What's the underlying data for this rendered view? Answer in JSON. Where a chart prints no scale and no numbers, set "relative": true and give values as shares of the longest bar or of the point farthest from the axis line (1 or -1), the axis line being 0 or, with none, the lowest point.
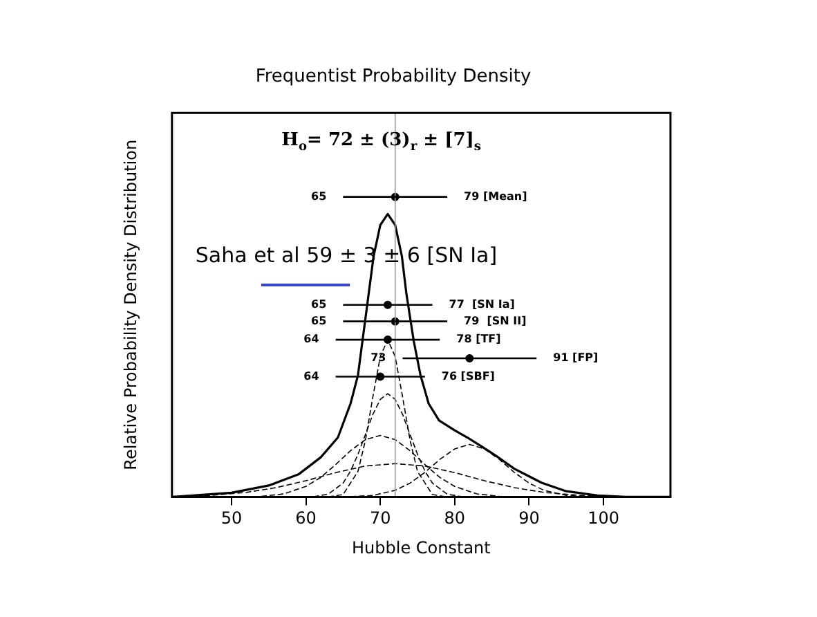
{
  "chart_data": {
    "type": "line",
    "title": "Frequentist Probability Density",
    "xlabel": "Hubble Constant",
    "ylabel": "Relative Probability Density Distribution",
    "relative": true,
    "xlim": [
      42,
      109
    ],
    "xticks": [
      50,
      60,
      70,
      80,
      90,
      100
    ],
    "grid": false,
    "legend": false,
    "ref_lines": [
      {
        "axis": "x",
        "value": 72,
        "color": "#999999"
      }
    ],
    "annotations": [
      "H$_{o}$= 72 ± (3)$_{r}$ ± [7]$_{s}$",
      "Saha et al 59 ± 3 ± 6 [SN Ia]",
      {
        "text": "65",
        "x": 65,
        "y": 1.0
      },
      {
        "text": "79 [Mean]",
        "x": 79,
        "y": 1.0
      },
      {
        "text": "65",
        "x": 65,
        "y": 0.64
      },
      {
        "text": "77  [SN Ia]",
        "x": 77,
        "y": 0.64
      },
      {
        "text": "65",
        "x": 65,
        "y": 0.585
      },
      {
        "text": "79  [SN II]",
        "x": 79,
        "y": 0.585
      },
      {
        "text": "64",
        "x": 64,
        "y": 0.524
      },
      {
        "text": "78 [TF]",
        "x": 78,
        "y": 0.524
      },
      {
        "text": "73",
        "x": 73,
        "y": 0.462
      },
      {
        "text": "91 [FP]",
        "x": 91,
        "y": 0.462
      },
      {
        "text": "64",
        "x": 64,
        "y": 0.401
      },
      {
        "text": "76 [SBF]",
        "x": 76,
        "y": 0.401
      }
    ],
    "series": [
      {
        "type": "line",
        "color": "#000000",
        "line_style": "solid",
        "x": [
          42,
          50,
          55,
          59,
          62,
          64.3,
          66,
          67,
          68.3,
          69.1,
          70,
          71,
          72,
          72.9,
          73.5,
          74.5,
          75.4,
          76.5,
          77.9,
          80,
          81.7,
          83.5,
          85.5,
          88,
          91.7,
          95,
          99.2,
          103,
          109
        ],
        "values": [
          0,
          0.014,
          0.038,
          0.075,
          0.132,
          0.198,
          0.311,
          0.406,
          0.651,
          0.802,
          0.906,
          0.943,
          0.906,
          0.802,
          0.679,
          0.519,
          0.406,
          0.311,
          0.255,
          0.222,
          0.198,
          0.17,
          0.138,
          0.094,
          0.047,
          0.019,
          0.005,
          0,
          0
        ]
      },
      {
        "type": "line",
        "color": "#000000",
        "line_style": "dashed",
        "x": [
          63,
          65,
          67,
          68,
          69,
          70,
          71,
          72,
          73,
          74,
          75,
          77,
          79
        ],
        "values": [
          0,
          0.008,
          0.085,
          0.189,
          0.333,
          0.468,
          0.524,
          0.468,
          0.333,
          0.189,
          0.085,
          0.008,
          0
        ]
      },
      {
        "type": "line",
        "color": "#000000",
        "line_style": "dashed",
        "x": [
          61,
          63,
          65,
          66,
          67,
          68,
          69,
          70,
          71,
          72,
          73,
          74,
          75,
          76,
          77,
          79,
          81
        ],
        "values": [
          0.001,
          0.009,
          0.046,
          0.086,
          0.142,
          0.208,
          0.275,
          0.325,
          0.344,
          0.325,
          0.275,
          0.208,
          0.142,
          0.086,
          0.046,
          0.009,
          0.001
        ]
      },
      {
        "type": "line",
        "color": "#000000",
        "line_style": "dashed",
        "x": [
          54,
          57,
          60,
          62,
          64,
          66,
          68,
          70,
          72,
          74,
          76,
          78,
          80,
          83,
          86
        ],
        "values": [
          0.002,
          0.01,
          0.035,
          0.065,
          0.108,
          0.154,
          0.191,
          0.205,
          0.191,
          0.154,
          0.108,
          0.065,
          0.035,
          0.01,
          0.002
        ]
      },
      {
        "type": "line",
        "color": "#000000",
        "line_style": "dashed",
        "x": [
          43,
          47,
          52,
          56,
          60,
          64,
          68,
          72,
          76,
          80,
          84,
          88,
          92,
          97,
          101
        ],
        "values": [
          0.002,
          0.005,
          0.015,
          0.031,
          0.054,
          0.081,
          0.103,
          0.111,
          0.103,
          0.081,
          0.054,
          0.031,
          0.015,
          0.005,
          0.002
        ]
      },
      {
        "type": "line",
        "color": "#000000",
        "line_style": "dashed",
        "x": [
          66,
          69,
          72,
          74,
          76,
          78,
          80,
          82,
          84,
          86,
          88,
          90,
          92,
          95,
          98
        ],
        "values": [
          0.001,
          0.005,
          0.022,
          0.046,
          0.082,
          0.125,
          0.16,
          0.175,
          0.16,
          0.125,
          0.082,
          0.046,
          0.022,
          0.005,
          0.001
        ]
      },
      {
        "type": "scatter",
        "color": "#000000",
        "marker": "circle",
        "x": [
          72,
          71,
          72,
          71,
          82,
          70
        ],
        "values": [
          1.0,
          0.64,
          0.585,
          0.524,
          0.462,
          0.401
        ],
        "xerrors": [
          [
            65,
            79
          ],
          [
            65,
            77
          ],
          [
            65,
            79
          ],
          [
            64,
            78
          ],
          [
            73,
            91
          ],
          [
            64,
            76
          ]
        ]
      }
    ]
  }
}
